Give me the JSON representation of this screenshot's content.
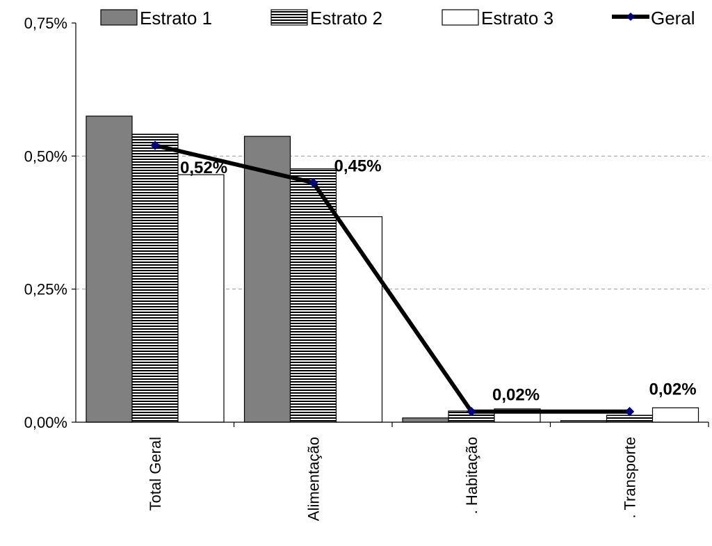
{
  "chart_data": {
    "type": "bar",
    "title": "",
    "xlabel": "",
    "ylabel": "",
    "categories": [
      "Total Geral",
      "Alimentação",
      ". Habitação",
      ". Transporte"
    ],
    "series": [
      {
        "name": "Estrato 1",
        "values": [
          0.575,
          0.537,
          0.008,
          0.003
        ],
        "style": "solid",
        "color": "#808080"
      },
      {
        "name": "Estrato 2",
        "values": [
          0.541,
          0.476,
          0.021,
          0.013
        ],
        "style": "striped",
        "color": "#ffffff"
      },
      {
        "name": "Estrato 3",
        "values": [
          0.465,
          0.386,
          0.025,
          0.027
        ],
        "style": "solid",
        "color": "#ffffff"
      }
    ],
    "line_series": {
      "name": "Geral",
      "values": [
        0.52,
        0.45,
        0.02,
        0.02
      ],
      "labels": [
        "0,52%",
        "0,45%",
        "0,02%",
        "0,02%"
      ],
      "color": "#000000",
      "marker_color": "#000080"
    },
    "yticks": [
      0,
      0.25,
      0.5,
      0.75
    ],
    "ytick_labels": [
      "0,00%",
      "0,25%",
      "0,50%",
      "0,75%"
    ],
    "ylim": [
      0,
      0.75
    ],
    "ygrid": "dashed",
    "legend_position": "top"
  }
}
